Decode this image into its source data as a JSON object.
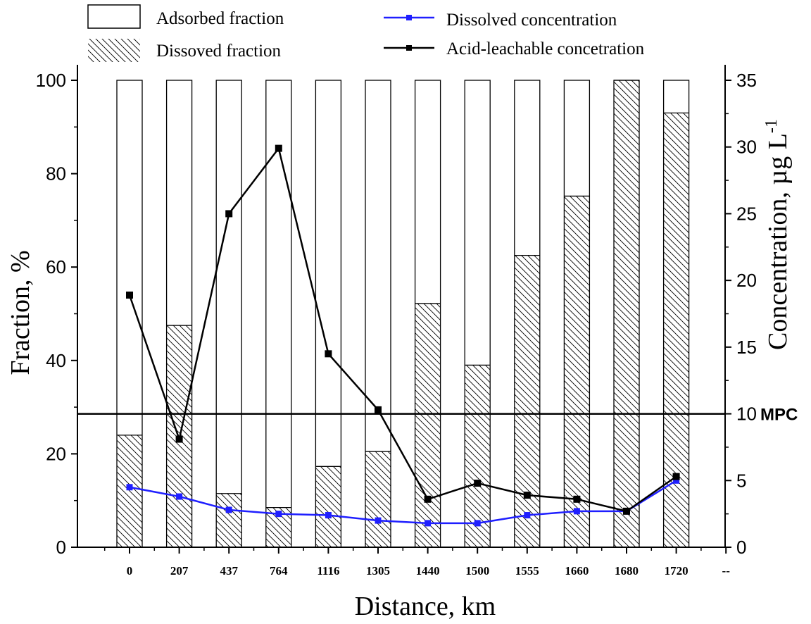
{
  "chart_data": {
    "type": "bar",
    "xlabel": "Distance, km",
    "ylabel_left": "Fraction, %",
    "ylabel_right_main": "Concentration, µg L",
    "ylabel_right_sup": "-1",
    "categories": [
      "0",
      "207",
      "437",
      "764",
      "1116",
      "1305",
      "1440",
      "1500",
      "1555",
      "1660",
      "1680",
      "1720"
    ],
    "extra_tick_label": "--",
    "left_axis": {
      "min": 0,
      "max": 100,
      "ticks": [
        "0",
        "20",
        "40",
        "60",
        "80",
        "100"
      ]
    },
    "right_axis": {
      "min": 0,
      "max": 35,
      "ticks": [
        "0",
        "5",
        "10",
        "15",
        "20",
        "25",
        "30",
        "35"
      ]
    },
    "stacked_bars": {
      "total": 100,
      "series": [
        {
          "name": "Dissoved fraction",
          "style": "hatched",
          "values": [
            24,
            47.5,
            11.5,
            8.5,
            17.3,
            20.5,
            52.2,
            39,
            62.5,
            75.2,
            100,
            93
          ]
        },
        {
          "name": "Adsorbed fraction",
          "style": "open",
          "values": [
            76,
            52.5,
            88.5,
            91.5,
            82.7,
            79.5,
            47.8,
            61,
            37.5,
            24.8,
            0,
            7
          ]
        }
      ]
    },
    "line_series": [
      {
        "name": "Dissolved concentration",
        "color": "#1f1fff",
        "values": [
          4.5,
          3.8,
          2.8,
          2.5,
          2.4,
          2.0,
          1.8,
          1.8,
          2.4,
          2.7,
          2.7,
          5.0
        ]
      },
      {
        "name": "Acid-leachable concetration",
        "color": "#000000",
        "values": [
          18.9,
          8.1,
          25.0,
          29.9,
          14.5,
          10.3,
          3.6,
          4.8,
          3.9,
          3.6,
          2.7,
          5.3
        ]
      }
    ],
    "reference_line": {
      "value": 10,
      "label": "MPC"
    },
    "legend": {
      "placement": "top",
      "items": [
        "Adsorbed fraction",
        "Dissoved fraction",
        "Dissolved concentration",
        "Acid-leachable concetration"
      ]
    },
    "grid": false
  }
}
